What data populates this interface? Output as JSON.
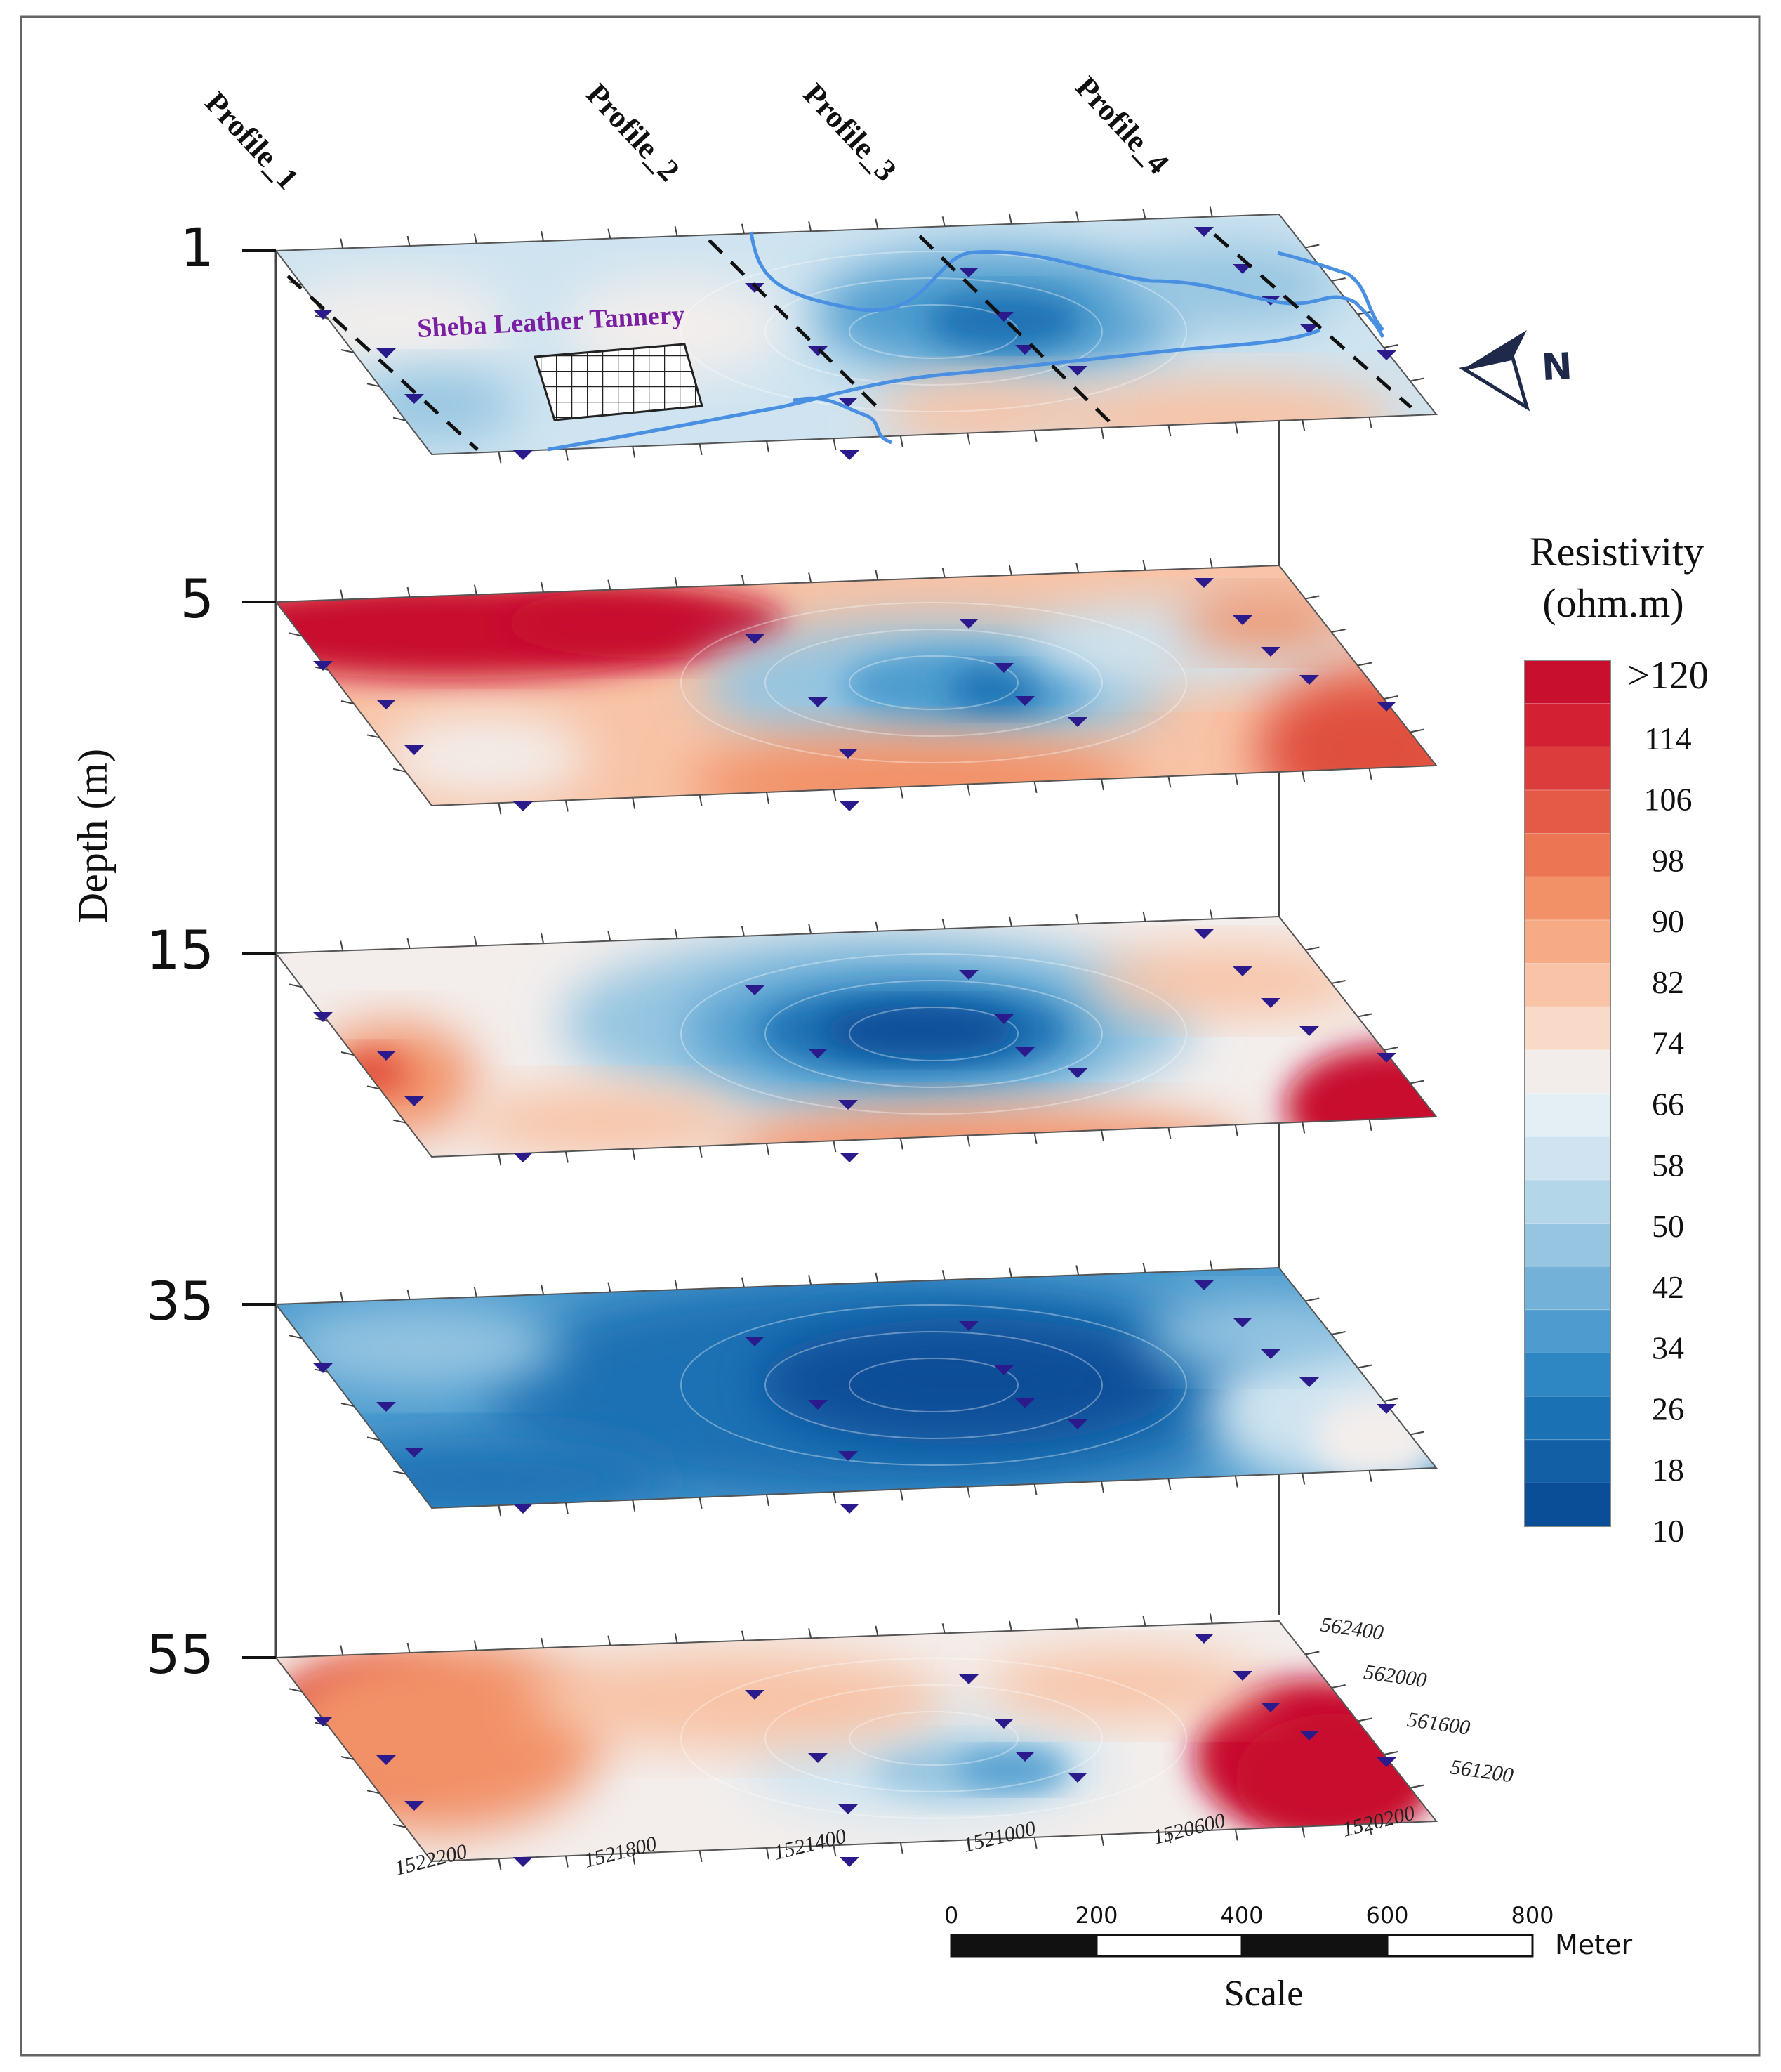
{
  "profiles": [
    {
      "label": "Profile_1"
    },
    {
      "label": "Profile_2"
    },
    {
      "label": "Profile_3"
    },
    {
      "label": "Profile_4"
    }
  ],
  "site_label": "Sheba Leather Tannery",
  "depth_axis": {
    "title": "Depth (m)",
    "levels": [
      {
        "label": "1",
        "theme": "mixed-top"
      },
      {
        "label": "5",
        "theme": "red-top"
      },
      {
        "label": "15",
        "theme": "blue-center"
      },
      {
        "label": "35",
        "theme": "blue-all"
      },
      {
        "label": "55",
        "theme": "red-sides"
      }
    ]
  },
  "north_arrow": {
    "label": "N"
  },
  "legend": {
    "title_line1": "Resistivity",
    "title_line2": "(ohm.m)",
    "labels": [
      ">120",
      "114",
      "106",
      "98",
      "90",
      "82",
      "74",
      "66",
      "58",
      "50",
      "42",
      "34",
      "26",
      "18",
      "10"
    ],
    "colors": [
      "#c8102e",
      "#d32033",
      "#dd3c3c",
      "#e55a46",
      "#ec7653",
      "#f29167",
      "#f6ab84",
      "#f8c3a6",
      "#f9dac8",
      "#f2ecea",
      "#e3eef5",
      "#cfe4f0",
      "#b4d6e9",
      "#95c5e1",
      "#74b1d8",
      "#4e9ccf",
      "#2e86c3",
      "#1a71b4",
      "#125fa6",
      "#0b4e98"
    ]
  },
  "x_axis_ticks": [
    "1522200",
    "1521800",
    "1521400",
    "1521000",
    "1520600",
    "1520200"
  ],
  "y_axis_ticks": [
    "562400",
    "562000",
    "561600",
    "561200"
  ],
  "scale_bar": {
    "ticks": [
      "0",
      "200",
      "400",
      "600",
      "800"
    ],
    "unit": "Meter",
    "title": "Scale"
  },
  "colors": {
    "frame": "#555555",
    "marker": "#2a1a8c",
    "river": "#4a90e2",
    "site_text": "#7a1fa2",
    "north_arrow": "#1f2a4a"
  }
}
